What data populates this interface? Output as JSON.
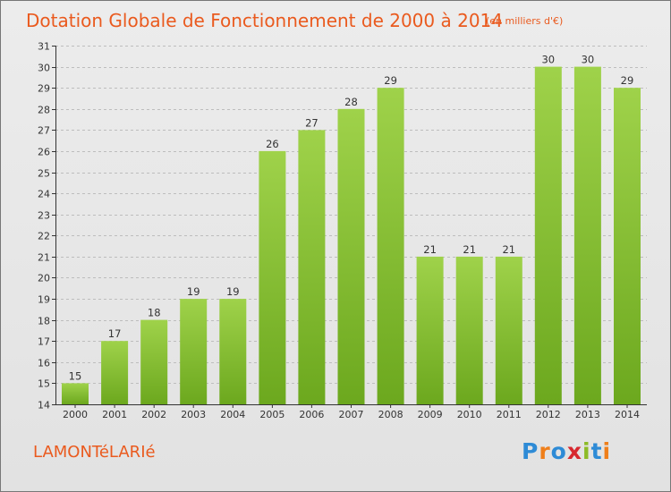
{
  "header": {
    "title": "Dotation Globale de Fonctionnement de 2000 à 2014",
    "unit": "(en milliers d'€)"
  },
  "footer": {
    "place": "LAMONTéLARIé",
    "logo": "Proxiti",
    "logo_colors": [
      "#2e8bd6",
      "#ef7f1a",
      "#2e8bd6",
      "#d7282f",
      "#8dbb26",
      "#2e8bd6",
      "#ef7f1a"
    ]
  },
  "colors": {
    "background": "#e6e6e6",
    "bar_light": "#9fd24a",
    "bar_dark": "#6ca81e",
    "text_accent": "#ea5a1e",
    "grid": "#bdbdbd",
    "axis": "#333333"
  },
  "chart_data": {
    "type": "bar",
    "title": "Dotation Globale de Fonctionnement de 2000 à 2014",
    "subtitle": "(en milliers d'€)",
    "xlabel": "",
    "ylabel": "",
    "categories": [
      "2000",
      "2001",
      "2002",
      "2003",
      "2004",
      "2005",
      "2006",
      "2007",
      "2008",
      "2009",
      "2010",
      "2011",
      "2012",
      "2013",
      "2014"
    ],
    "values": [
      15,
      17,
      18,
      19,
      19,
      26,
      27,
      28,
      29,
      21,
      21,
      21,
      30,
      30,
      29
    ],
    "ylim": [
      14,
      31
    ],
    "yticks": [
      14,
      15,
      16,
      17,
      18,
      19,
      20,
      21,
      22,
      23,
      24,
      25,
      26,
      27,
      28,
      29,
      30,
      31
    ],
    "grid": true,
    "data_labels": true,
    "legend": "none"
  }
}
